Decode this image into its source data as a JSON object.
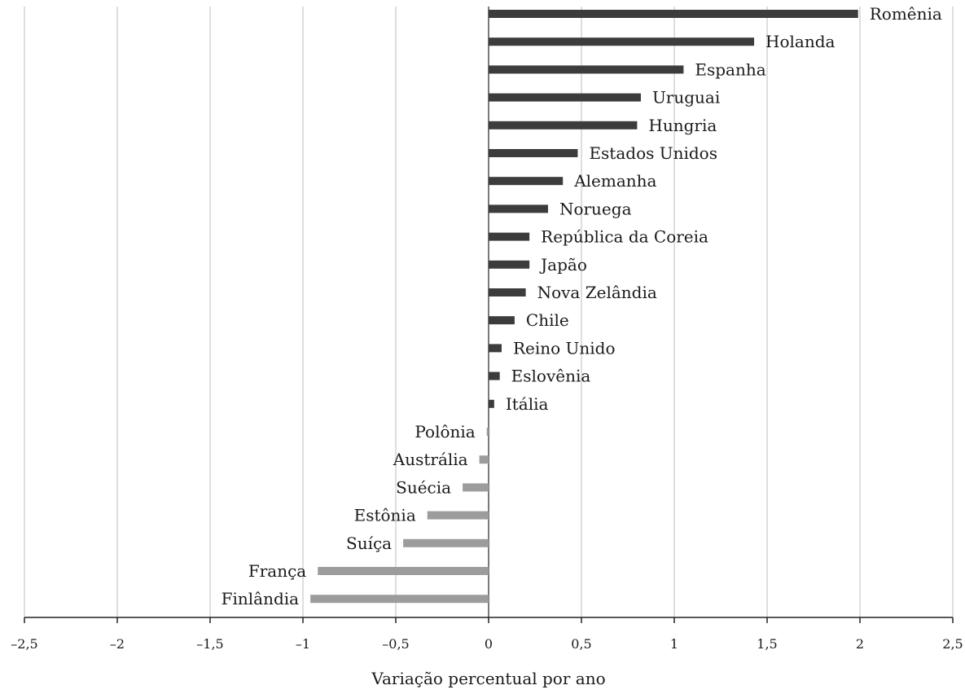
{
  "chart_data": {
    "type": "bar",
    "orientation": "horizontal",
    "xlabel": "Variação percentual por ano",
    "xlim": [
      -2.5,
      2.5
    ],
    "xticks": [
      -2.5,
      -2,
      -1.5,
      -1,
      -0.5,
      0,
      0.5,
      1,
      1.5,
      2,
      2.5
    ],
    "xtick_labels": [
      "–2,5",
      "–2",
      "–1,5",
      "–1",
      "–0,5",
      "0",
      "0,5",
      "1",
      "1,5",
      "2",
      "2,5"
    ],
    "grid": "vertical",
    "colors": {
      "positive": "#3c3c3c",
      "negative": "#9c9c9c",
      "grid": "#c8c8c8",
      "axis": "#222222"
    },
    "categories": [
      "Romênia",
      "Holanda",
      "Espanha",
      "Uruguai",
      "Hungria",
      "Estados Unidos",
      "Alemanha",
      "Noruega",
      "República da Coreia",
      "Japão",
      "Nova Zelândia",
      "Chile",
      "Reino Unido",
      "Eslovênia",
      "Itália",
      "Polônia",
      "Austrália",
      "Suécia",
      "Estônia",
      "Suíça",
      "França",
      "Finlândia"
    ],
    "values": [
      1.99,
      1.43,
      1.05,
      0.82,
      0.8,
      0.48,
      0.4,
      0.32,
      0.22,
      0.22,
      0.2,
      0.14,
      0.07,
      0.06,
      0.03,
      -0.01,
      -0.05,
      -0.14,
      -0.33,
      -0.46,
      -0.92,
      -0.96
    ]
  }
}
